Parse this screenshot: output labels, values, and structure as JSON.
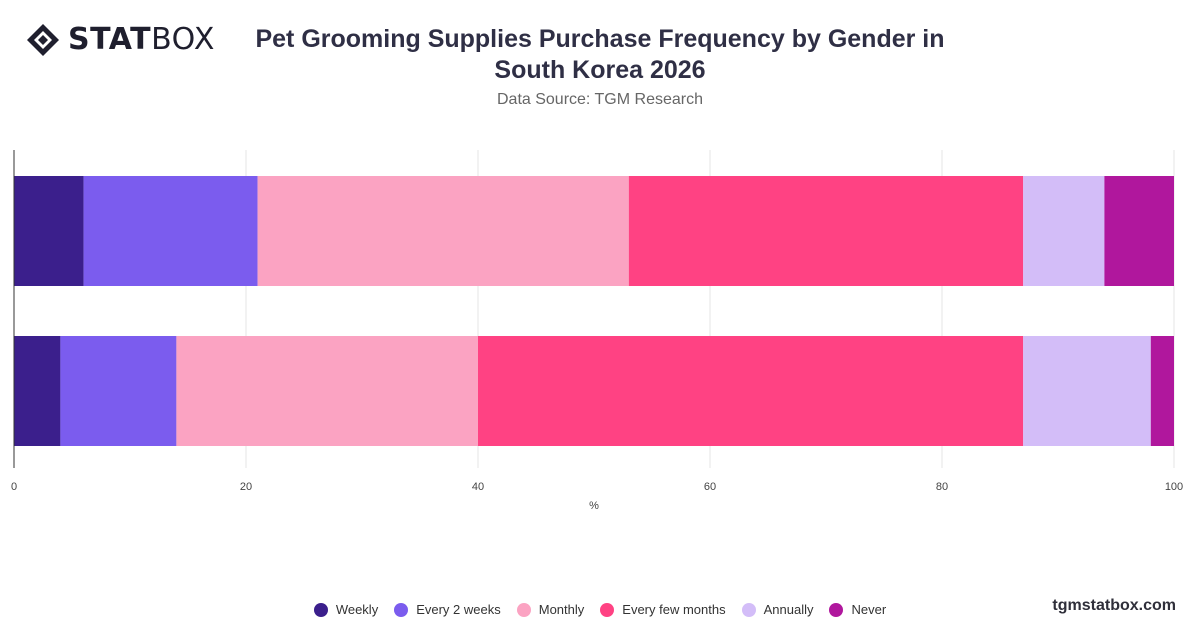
{
  "brand": {
    "logo_bold": "STAT",
    "logo_light": "BOX",
    "site": "tgmstatbox.com"
  },
  "chart_data": {
    "type": "bar",
    "orientation": "horizontal",
    "stacked": true,
    "title": "Pet Grooming Supplies Purchase Frequency by Gender in South Korea 2026",
    "subtitle": "Data Source: TGM Research",
    "xlabel": "%",
    "ylabel": "",
    "xlim": [
      0,
      100
    ],
    "xticks": [
      0,
      20,
      40,
      60,
      80,
      100
    ],
    "categories": [
      "",
      ""
    ],
    "series": [
      {
        "name": "Weekly",
        "color": "#3b1f8c",
        "values": [
          6,
          4
        ]
      },
      {
        "name": "Every 2 weeks",
        "color": "#7b5cee",
        "values": [
          15,
          10
        ]
      },
      {
        "name": "Monthly",
        "color": "#fba3c2",
        "values": [
          32,
          26
        ]
      },
      {
        "name": "Every few months",
        "color": "#ff4283",
        "values": [
          34,
          47
        ]
      },
      {
        "name": "Annually",
        "color": "#d3bdf8",
        "values": [
          7,
          11
        ]
      },
      {
        "name": "Never",
        "color": "#b0179d",
        "values": [
          6,
          2
        ]
      }
    ],
    "grid": true,
    "legend_position": "bottom"
  }
}
